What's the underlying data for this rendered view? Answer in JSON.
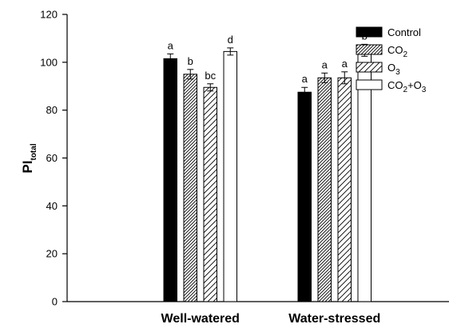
{
  "chart_data": {
    "type": "bar",
    "ylabel": {
      "main": "PI",
      "sub": "total"
    },
    "ylim": [
      0,
      120
    ],
    "yticks": [
      0,
      20,
      40,
      60,
      80,
      100,
      120
    ],
    "categories": [
      "Well-watered",
      "Water-stressed"
    ],
    "series": [
      {
        "name": {
          "main": "Control",
          "sub": "",
          "tail": ""
        },
        "pattern": "solid",
        "values": [
          101.5,
          87.5
        ],
        "errors": [
          2.0,
          2.0
        ],
        "labels": [
          "a",
          "a"
        ]
      },
      {
        "name": {
          "main": "CO",
          "sub": "2",
          "tail": ""
        },
        "pattern": "dense-hatch",
        "values": [
          95.0,
          93.5
        ],
        "errors": [
          2.0,
          2.0
        ],
        "labels": [
          "b",
          "a"
        ]
      },
      {
        "name": {
          "main": "O",
          "sub": "3",
          "tail": ""
        },
        "pattern": "sparse-hatch",
        "values": [
          89.5,
          93.5
        ],
        "errors": [
          1.5,
          2.5
        ],
        "labels": [
          "bc",
          "a"
        ]
      },
      {
        "name": {
          "main": "CO",
          "sub": "2",
          "tail": "+O",
          "sub2": "3"
        },
        "pattern": "open",
        "values": [
          104.5,
          105.0
        ],
        "errors": [
          1.5,
          2.5
        ],
        "labels": [
          "d",
          "b"
        ]
      }
    ],
    "legend_position": "top-right",
    "grid": false
  }
}
